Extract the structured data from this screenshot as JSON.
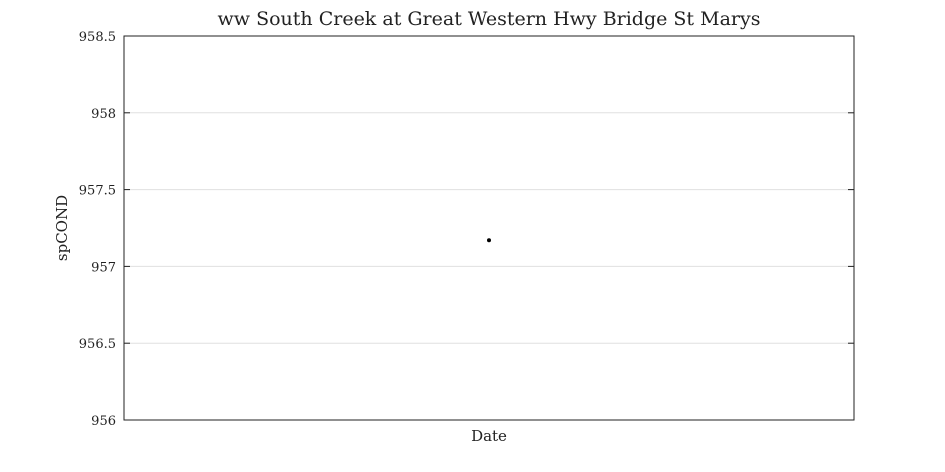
{
  "chart_data": {
    "type": "scatter",
    "title": "ww South Creek at Great Western Hwy Bridge St Marys",
    "xlabel": "Date",
    "ylabel": "spCOND",
    "ylim": [
      956,
      958.5
    ],
    "yticks": [
      956,
      956.5,
      957,
      957.5,
      958,
      958.5
    ],
    "ytick_labels": [
      "956",
      "956.5",
      "957",
      "957.5",
      "958",
      "958.5"
    ],
    "grid": true,
    "series": [
      {
        "points": [
          {
            "y": 957.17
          }
        ]
      }
    ],
    "colors": {
      "marker": "#000000",
      "grid": "#e0e0e0",
      "axes": "#222222"
    }
  }
}
